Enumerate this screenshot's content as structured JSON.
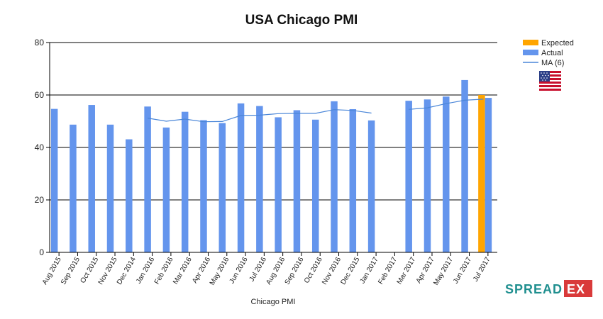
{
  "chart_data": {
    "type": "bar",
    "title": "USA Chicago PMI",
    "xlabel": "Chicago PMI",
    "ylabel": "",
    "ylim": [
      0,
      80
    ],
    "yticks": [
      0,
      20,
      40,
      60,
      80
    ],
    "grid": true,
    "legend_position": "top-right",
    "categories": [
      "Aug 2015",
      "Sep 2015",
      "Oct 2015",
      "Nov 2015",
      "Dec 2014",
      "Jan 2016",
      "Feb 2016",
      "Mar 2016",
      "Apr 2016",
      "May 2016",
      "Jun 2016",
      "Jul 2016",
      "Aug 2016",
      "Sep 2016",
      "Oct 2016",
      "Nov 2016",
      "Dec 2015",
      "Jan 2017",
      "Feb 2017",
      "Mar 2017",
      "Apr 2017",
      "May 2017",
      "Jun 2017",
      "Jul 2017"
    ],
    "series": [
      {
        "name": "Expected",
        "type": "bar",
        "color": "#FFA500",
        "values": [
          null,
          null,
          null,
          null,
          null,
          null,
          null,
          null,
          null,
          null,
          null,
          null,
          null,
          null,
          null,
          null,
          null,
          null,
          null,
          null,
          null,
          null,
          null,
          60.0
        ]
      },
      {
        "name": "Actual",
        "type": "bar",
        "color": "#6495ED",
        "values": [
          54.7,
          48.7,
          56.2,
          48.7,
          43.1,
          55.6,
          47.6,
          53.6,
          50.4,
          49.3,
          56.8,
          55.8,
          51.5,
          54.2,
          50.6,
          57.6,
          54.6,
          50.3,
          null,
          57.8,
          58.3,
          59.4,
          65.7,
          58.9
        ]
      },
      {
        "name": "MA (6)",
        "type": "line",
        "color": "#4a86d8",
        "values": [
          null,
          null,
          null,
          null,
          null,
          51.2,
          50.0,
          50.8,
          49.8,
          49.9,
          52.2,
          52.3,
          52.9,
          53.0,
          53.0,
          54.4,
          54.1,
          53.1,
          null,
          54.5,
          55.1,
          56.7,
          58.0,
          58.4
        ]
      }
    ]
  },
  "logo": {
    "part1": "SPREAD",
    "part2": "EX"
  }
}
